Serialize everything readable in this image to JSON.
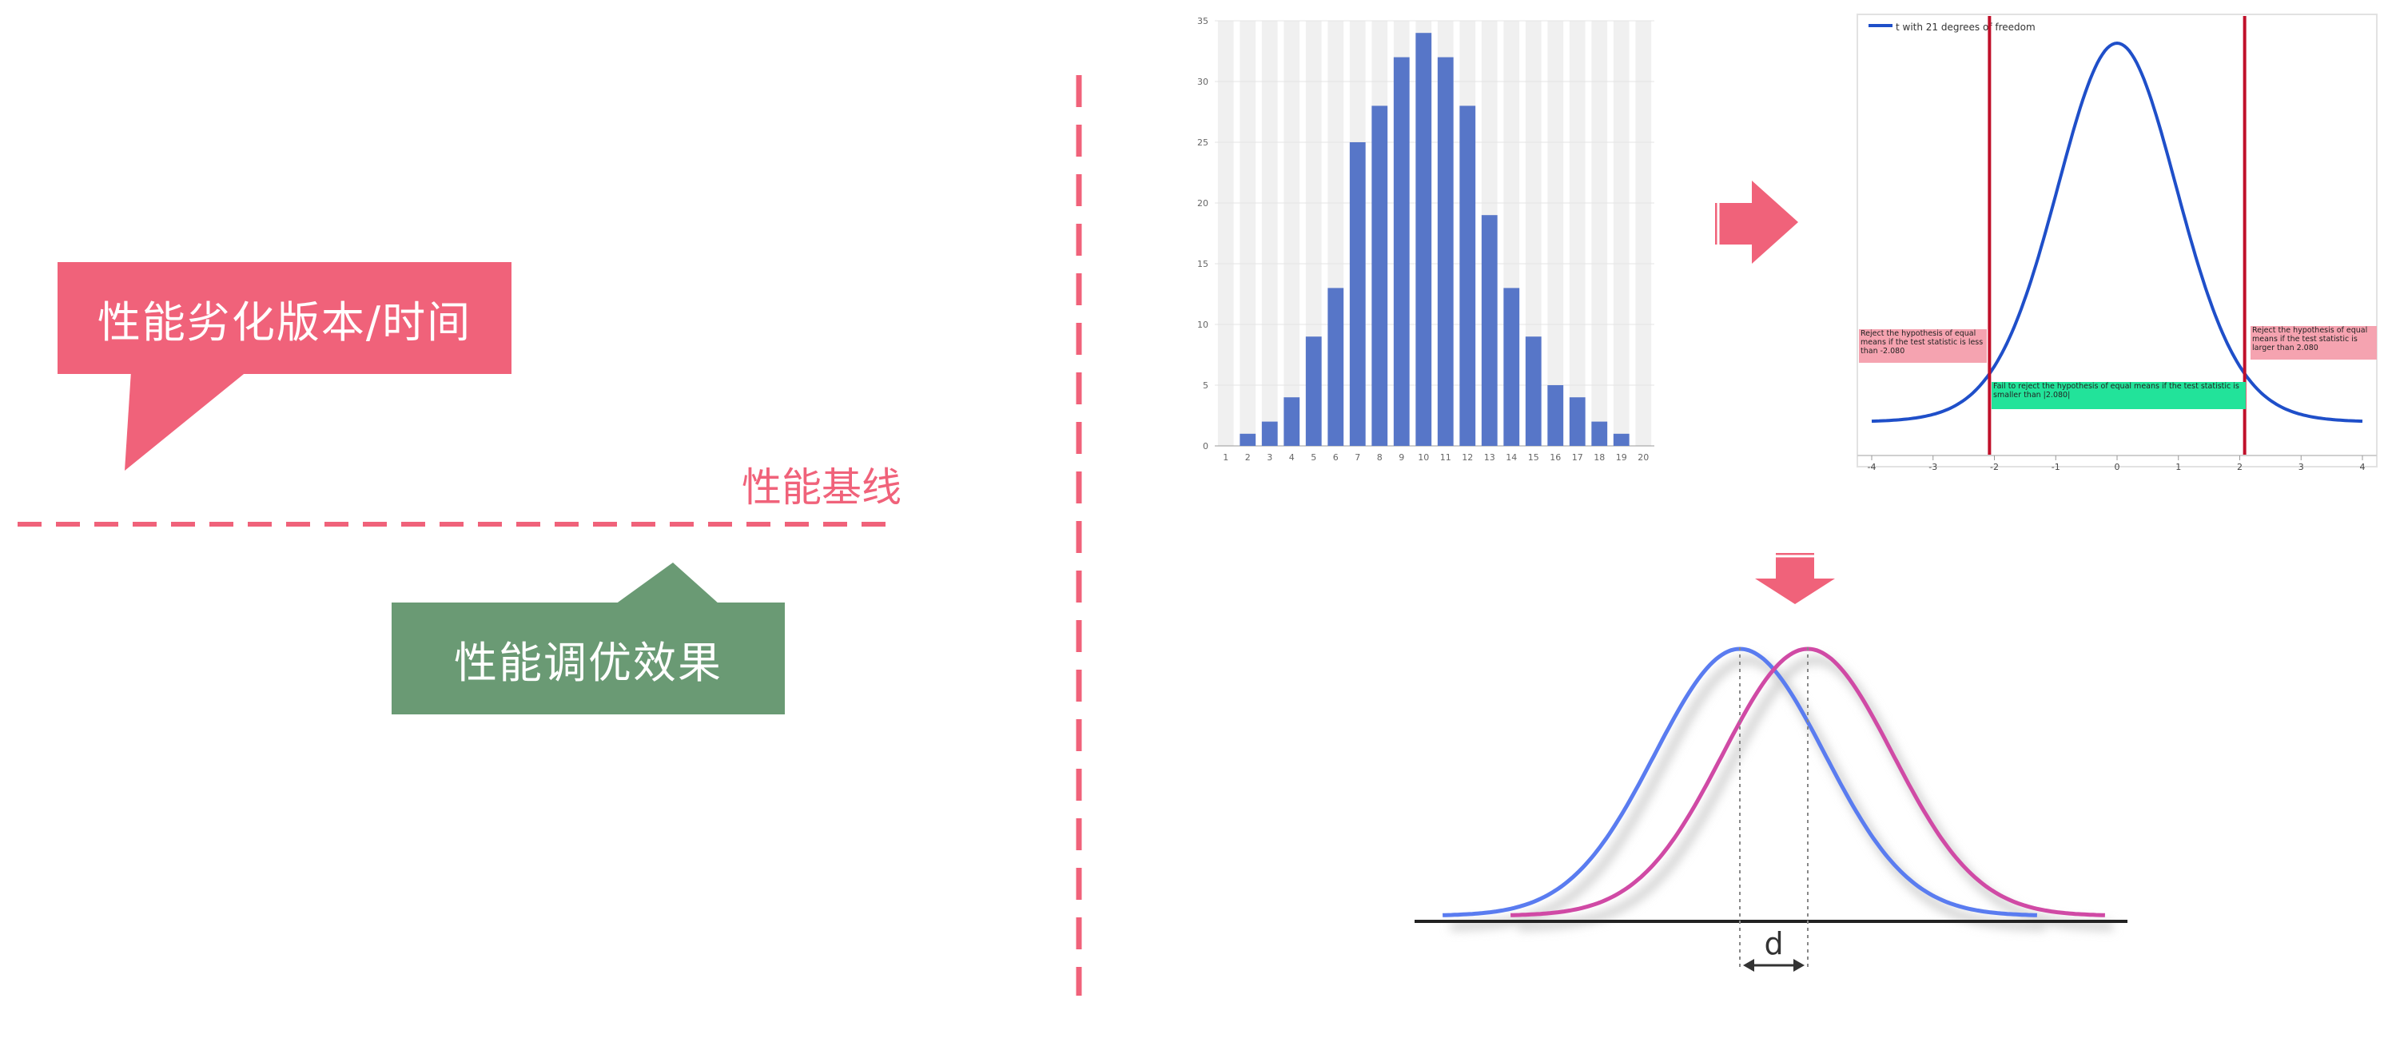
{
  "left_panel": {
    "degradation_label": "性能劣化版本/时间",
    "baseline_label": "性能基线",
    "tuning_label": "性能调优效果"
  },
  "colors": {
    "accent_red": "#f0627a",
    "accent_green": "#6a9a74",
    "bar_blue": "#5776c8",
    "curve_blue": "#1f4fc9",
    "reject_line": "#c0102a",
    "distribution_a": "#5a7cf0",
    "distribution_b": "#d04aa5"
  },
  "icons": [
    "arrow-right-icon",
    "arrow-down-icon",
    "distance-arrow-icon"
  ],
  "chart_data": [
    {
      "type": "bar",
      "categories": [
        "1",
        "2",
        "3",
        "4",
        "5",
        "6",
        "7",
        "8",
        "9",
        "10",
        "11",
        "12",
        "13",
        "14",
        "15",
        "16",
        "17",
        "18",
        "19",
        "20"
      ],
      "values": [
        0,
        1,
        2,
        4,
        9,
        13,
        25,
        28,
        32,
        34,
        32,
        28,
        19,
        13,
        9,
        5,
        4,
        2,
        1,
        0
      ],
      "y_ticks": [
        "0",
        "5",
        "10",
        "15",
        "20",
        "25",
        "30",
        "35"
      ],
      "ylim": [
        0,
        35
      ],
      "grid": true
    },
    {
      "type": "line",
      "legend": "t with 21 degrees of freedom",
      "x_ticks": [
        "-4",
        "-3",
        "-2",
        "-1",
        "0",
        "1",
        "2",
        "3",
        "4"
      ],
      "xlim": [
        -4,
        4
      ],
      "critical_values": [
        -2.08,
        2.08
      ],
      "annotations": {
        "left_reject": "Reject the hypothesis of equal means if the test statistic is less than -2.080",
        "right_reject": "Reject the hypothesis of equal means if the test statistic is larger than 2.080",
        "fail_reject": "Fail to reject the hypothesis of equal means if the test statistic is smaller than |2.080|"
      }
    },
    {
      "type": "line",
      "series": [
        {
          "name": "",
          "mean": 0
        },
        {
          "name": "",
          "mean": 1
        }
      ],
      "distance_label": "d"
    }
  ]
}
